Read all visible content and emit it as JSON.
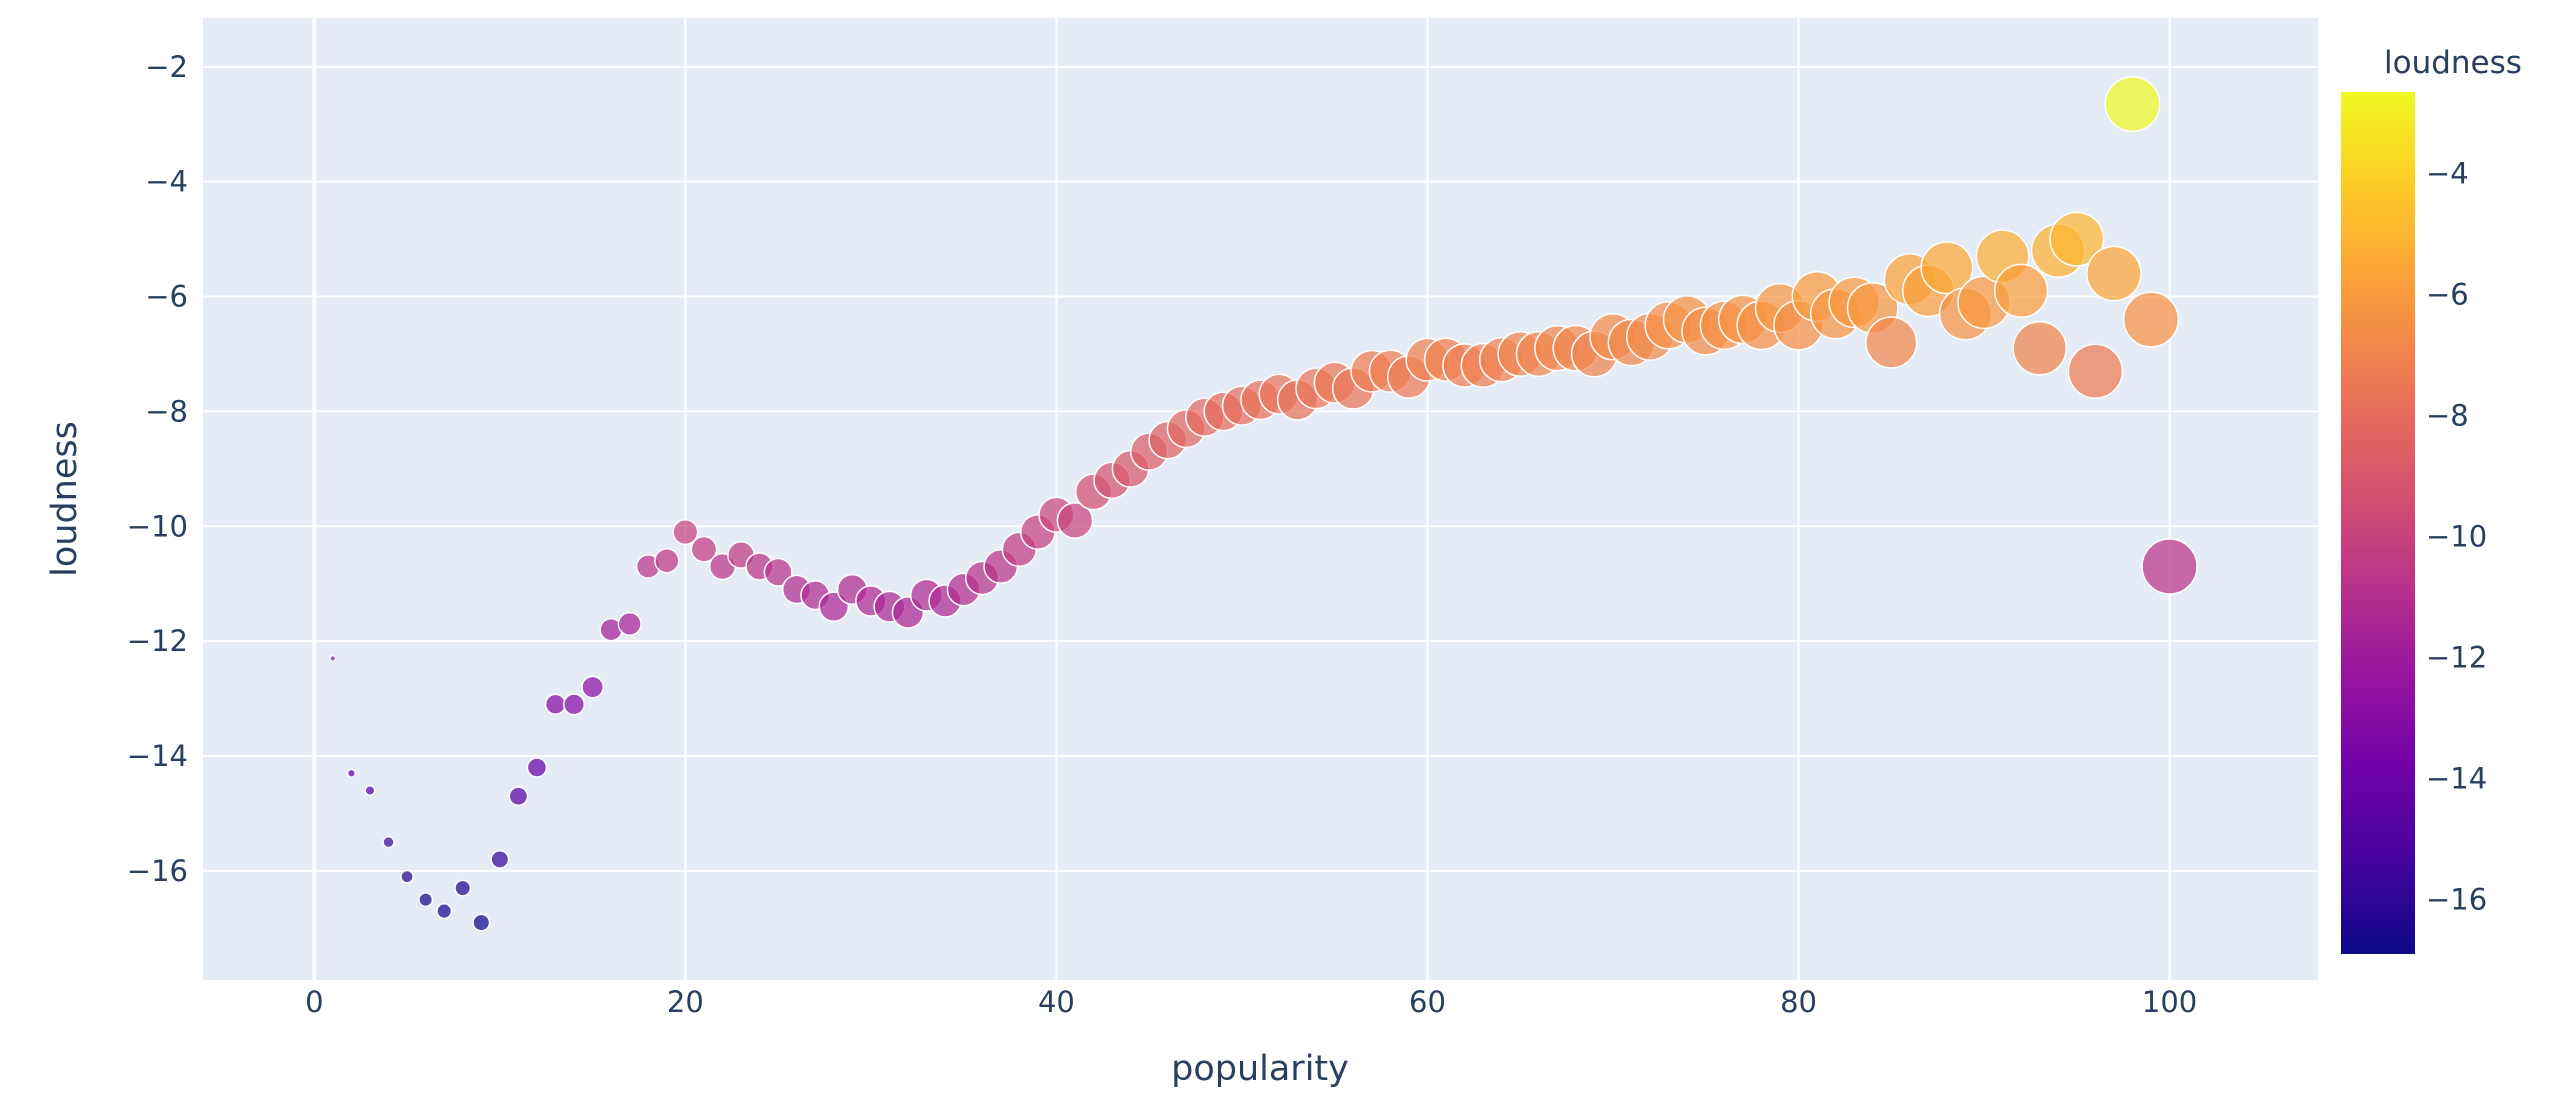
{
  "chart_data": {
    "type": "scatter",
    "title": "",
    "xlabel": "popularity",
    "ylabel": "loudness",
    "xlim": [
      -6,
      108
    ],
    "ylim": [
      -17.9,
      -1.15
    ],
    "x_ticks": [
      0,
      20,
      40,
      60,
      80,
      100
    ],
    "y_ticks": [
      -2,
      -4,
      -6,
      -8,
      -10,
      -12,
      -14,
      -16
    ],
    "x_tick_labels": [
      "0",
      "20",
      "40",
      "60",
      "80",
      "100"
    ],
    "y_tick_labels": [
      "−2",
      "−4",
      "−6",
      "−8",
      "−10",
      "−12",
      "−14",
      "−16"
    ],
    "grid": true,
    "marker_size_encodes": "popularity",
    "color_encodes": "loudness",
    "colorbar": {
      "title": "loudness",
      "range": [
        -16.9,
        -2.65
      ],
      "ticks": [
        -4,
        -6,
        -8,
        -10,
        -12,
        -14,
        -16
      ],
      "tick_labels": [
        "−4",
        "−6",
        "−8",
        "−10",
        "−12",
        "−14",
        "−16"
      ],
      "colorscale": [
        "#0d0887",
        "#46039f",
        "#7201a8",
        "#9c179e",
        "#bd3786",
        "#d8576b",
        "#ed7953",
        "#fb9f3a",
        "#fdca26",
        "#f0f921"
      ]
    },
    "points": [
      {
        "x": 1,
        "y": -12.3
      },
      {
        "x": 2,
        "y": -14.3
      },
      {
        "x": 3,
        "y": -14.6
      },
      {
        "x": 4,
        "y": -15.5
      },
      {
        "x": 5,
        "y": -16.1
      },
      {
        "x": 6,
        "y": -16.5
      },
      {
        "x": 7,
        "y": -16.7
      },
      {
        "x": 8,
        "y": -16.3
      },
      {
        "x": 9,
        "y": -16.9
      },
      {
        "x": 10,
        "y": -15.8
      },
      {
        "x": 11,
        "y": -14.7
      },
      {
        "x": 12,
        "y": -14.2
      },
      {
        "x": 13,
        "y": -13.1
      },
      {
        "x": 14,
        "y": -13.1
      },
      {
        "x": 15,
        "y": -12.8
      },
      {
        "x": 16,
        "y": -11.8
      },
      {
        "x": 17,
        "y": -11.7
      },
      {
        "x": 18,
        "y": -10.7
      },
      {
        "x": 19,
        "y": -10.6
      },
      {
        "x": 20,
        "y": -10.1
      },
      {
        "x": 21,
        "y": -10.4
      },
      {
        "x": 22,
        "y": -10.7
      },
      {
        "x": 23,
        "y": -10.5
      },
      {
        "x": 24,
        "y": -10.7
      },
      {
        "x": 25,
        "y": -10.8
      },
      {
        "x": 26,
        "y": -11.1
      },
      {
        "x": 27,
        "y": -11.2
      },
      {
        "x": 28,
        "y": -11.4
      },
      {
        "x": 29,
        "y": -11.1
      },
      {
        "x": 30,
        "y": -11.3
      },
      {
        "x": 31,
        "y": -11.4
      },
      {
        "x": 32,
        "y": -11.5
      },
      {
        "x": 33,
        "y": -11.2
      },
      {
        "x": 34,
        "y": -11.3
      },
      {
        "x": 35,
        "y": -11.1
      },
      {
        "x": 36,
        "y": -10.9
      },
      {
        "x": 37,
        "y": -10.7
      },
      {
        "x": 38,
        "y": -10.4
      },
      {
        "x": 39,
        "y": -10.1
      },
      {
        "x": 40,
        "y": -9.8
      },
      {
        "x": 41,
        "y": -9.9
      },
      {
        "x": 42,
        "y": -9.4
      },
      {
        "x": 43,
        "y": -9.2
      },
      {
        "x": 44,
        "y": -9.0
      },
      {
        "x": 45,
        "y": -8.7
      },
      {
        "x": 46,
        "y": -8.5
      },
      {
        "x": 47,
        "y": -8.3
      },
      {
        "x": 48,
        "y": -8.1
      },
      {
        "x": 49,
        "y": -8.0
      },
      {
        "x": 50,
        "y": -7.9
      },
      {
        "x": 51,
        "y": -7.8
      },
      {
        "x": 52,
        "y": -7.7
      },
      {
        "x": 53,
        "y": -7.8
      },
      {
        "x": 54,
        "y": -7.6
      },
      {
        "x": 55,
        "y": -7.5
      },
      {
        "x": 56,
        "y": -7.6
      },
      {
        "x": 57,
        "y": -7.3
      },
      {
        "x": 58,
        "y": -7.3
      },
      {
        "x": 59,
        "y": -7.4
      },
      {
        "x": 60,
        "y": -7.1
      },
      {
        "x": 61,
        "y": -7.1
      },
      {
        "x": 62,
        "y": -7.2
      },
      {
        "x": 63,
        "y": -7.2
      },
      {
        "x": 64,
        "y": -7.1
      },
      {
        "x": 65,
        "y": -7.0
      },
      {
        "x": 66,
        "y": -7.0
      },
      {
        "x": 67,
        "y": -6.9
      },
      {
        "x": 68,
        "y": -6.9
      },
      {
        "x": 69,
        "y": -7.0
      },
      {
        "x": 70,
        "y": -6.7
      },
      {
        "x": 71,
        "y": -6.8
      },
      {
        "x": 72,
        "y": -6.7
      },
      {
        "x": 73,
        "y": -6.5
      },
      {
        "x": 74,
        "y": -6.4
      },
      {
        "x": 75,
        "y": -6.6
      },
      {
        "x": 76,
        "y": -6.5
      },
      {
        "x": 77,
        "y": -6.4
      },
      {
        "x": 78,
        "y": -6.5
      },
      {
        "x": 79,
        "y": -6.2
      },
      {
        "x": 80,
        "y": -6.5
      },
      {
        "x": 81,
        "y": -6.0
      },
      {
        "x": 82,
        "y": -6.3
      },
      {
        "x": 83,
        "y": -6.1
      },
      {
        "x": 84,
        "y": -6.2
      },
      {
        "x": 85,
        "y": -6.8
      },
      {
        "x": 86,
        "y": -5.7
      },
      {
        "x": 87,
        "y": -5.9
      },
      {
        "x": 88,
        "y": -5.5
      },
      {
        "x": 89,
        "y": -6.3
      },
      {
        "x": 90,
        "y": -6.1
      },
      {
        "x": 91,
        "y": -5.3
      },
      {
        "x": 92,
        "y": -5.9
      },
      {
        "x": 93,
        "y": -6.9
      },
      {
        "x": 94,
        "y": -5.2
      },
      {
        "x": 95,
        "y": -5.0
      },
      {
        "x": 96,
        "y": -7.3
      },
      {
        "x": 97,
        "y": -5.6
      },
      {
        "x": 98,
        "y": -2.65
      },
      {
        "x": 99,
        "y": -6.4
      },
      {
        "x": 100,
        "y": -10.7
      }
    ]
  }
}
